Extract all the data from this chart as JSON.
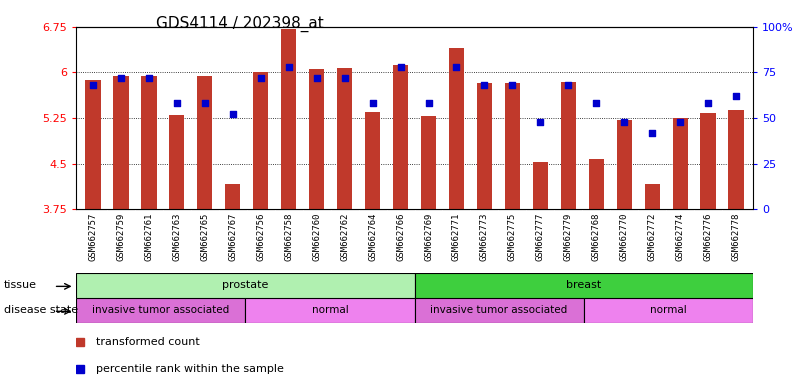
{
  "title": "GDS4114 / 202398_at",
  "samples": [
    "GSM662757",
    "GSM662759",
    "GSM662761",
    "GSM662763",
    "GSM662765",
    "GSM662767",
    "GSM662756",
    "GSM662758",
    "GSM662760",
    "GSM662762",
    "GSM662764",
    "GSM662766",
    "GSM662769",
    "GSM662771",
    "GSM662773",
    "GSM662775",
    "GSM662777",
    "GSM662779",
    "GSM662768",
    "GSM662770",
    "GSM662772",
    "GSM662774",
    "GSM662776",
    "GSM662778"
  ],
  "bar_values": [
    5.88,
    5.95,
    5.95,
    5.3,
    5.95,
    4.17,
    6.01,
    6.72,
    6.05,
    6.08,
    5.35,
    6.12,
    5.28,
    6.4,
    5.82,
    5.82,
    4.52,
    5.85,
    4.58,
    5.22,
    4.17,
    5.25,
    5.33,
    5.38
  ],
  "percentile_values": [
    68,
    72,
    72,
    58,
    58,
    52,
    72,
    78,
    72,
    72,
    58,
    78,
    58,
    78,
    68,
    68,
    48,
    68,
    58,
    48,
    42,
    48,
    58,
    62
  ],
  "bar_color": "#c0392b",
  "dot_color": "#0000cc",
  "ylim_left": [
    3.75,
    6.75
  ],
  "ylim_right": [
    0,
    100
  ],
  "yticks_left": [
    3.75,
    4.5,
    5.25,
    6.0,
    6.75
  ],
  "ytick_labels_left": [
    "3.75",
    "4.5",
    "5.25",
    "6",
    "6.75"
  ],
  "yticks_right": [
    0,
    25,
    50,
    75,
    100
  ],
  "ytick_labels_right": [
    "0",
    "25",
    "50",
    "75",
    "100%"
  ],
  "grid_lines": [
    4.5,
    5.25,
    6.0
  ],
  "tissue_groups": [
    {
      "label": "prostate",
      "start": 0,
      "end": 12,
      "color": "#b0f0b0"
    },
    {
      "label": "breast",
      "start": 12,
      "end": 24,
      "color": "#3ecf3e"
    }
  ],
  "disease_groups": [
    {
      "label": "invasive tumor associated",
      "start": 0,
      "end": 6,
      "color": "#da70d6"
    },
    {
      "label": "normal",
      "start": 6,
      "end": 12,
      "color": "#ee82ee"
    },
    {
      "label": "invasive tumor associated",
      "start": 12,
      "end": 18,
      "color": "#da70d6"
    },
    {
      "label": "normal",
      "start": 18,
      "end": 24,
      "color": "#ee82ee"
    }
  ],
  "legend_items": [
    {
      "label": "transformed count",
      "color": "#c0392b"
    },
    {
      "label": "percentile rank within the sample",
      "color": "#0000cc"
    }
  ],
  "background_color": "#ffffff",
  "plot_bg_color": "#ffffff",
  "xtick_bg_color": "#d3d3d3",
  "title_fontsize": 11,
  "tick_fontsize": 8,
  "bar_width": 0.55
}
